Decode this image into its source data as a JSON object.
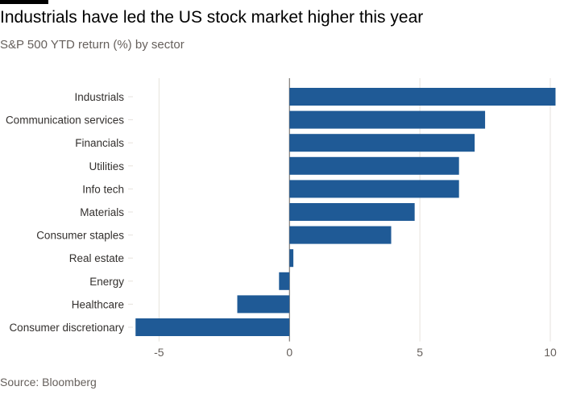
{
  "header": {
    "title": "Industrials have led the US stock market higher this year",
    "subtitle": "S&P 500 YTD return (%) by sector"
  },
  "footer": {
    "source": "Source: Bloomberg"
  },
  "chart_data": {
    "type": "bar",
    "orientation": "horizontal",
    "categories": [
      "Industrials",
      "Communication services",
      "Financials",
      "Utilities",
      "Info tech",
      "Materials",
      "Consumer staples",
      "Real estate",
      "Energy",
      "Healthcare",
      "Consumer discretionary"
    ],
    "values": [
      10.2,
      7.5,
      7.1,
      6.5,
      6.5,
      4.8,
      3.9,
      0.15,
      -0.4,
      -2.0,
      -5.9
    ],
    "xlim": [
      -6,
      10
    ],
    "xticks": [
      -5,
      0,
      5,
      10
    ],
    "grid": true,
    "bar_color": "#1f5a96",
    "grid_color": "#e6e2dc",
    "zero_line_color": "#66605c"
  }
}
